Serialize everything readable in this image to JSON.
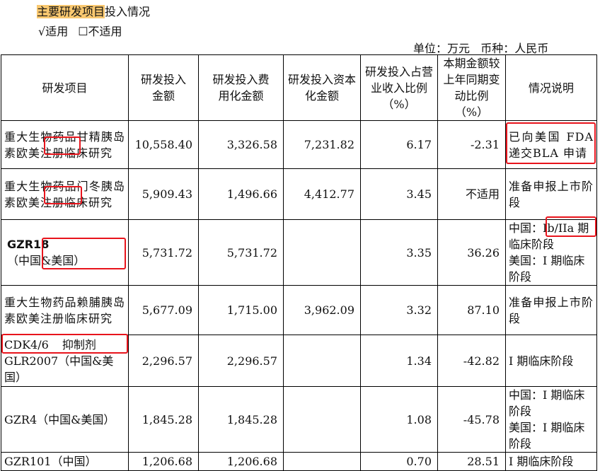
{
  "heading": {
    "highlighted": "主要研发项目",
    "rest": "投入情况"
  },
  "applicability": {
    "applicable": "√适用",
    "not_applicable": "☐不适用"
  },
  "unit_line": "单位：万元   币种：人民币",
  "table": {
    "headers": [
      "研发项目",
      "研发投入金额",
      "研发投入费用化金额",
      "研发投入资本化金额",
      "研发投入占营业收入比例（%）",
      "本期金额较上年同期变动比例（%）",
      "情况说明"
    ],
    "rows": [
      {
        "project": "重大生物药品甘精胰岛素欧美注册临床研究",
        "total": "10,558.40",
        "expensed": "3,326.58",
        "capitalized": "7,231.82",
        "ratio": "6.17",
        "change": "-2.31",
        "note": "已向美国 FDA 递交BLA 申请"
      },
      {
        "project": "重大生物药品门冬胰岛素欧美注册临床研究",
        "total": "5,909.43",
        "expensed": "1,496.66",
        "capitalized": "4,412.77",
        "ratio": "3.45",
        "change": "不适用",
        "note": "准备申报上市阶段"
      },
      {
        "project_code": "GZR18",
        "project": "（中国&美国）",
        "total": "5,731.72",
        "expensed": "5,731.72",
        "capitalized": "",
        "ratio": "3.35",
        "change": "36.26",
        "note": "中国：Ib/IIa 期临床阶段",
        "note2": "美国：I 期临床阶段"
      },
      {
        "project": "重大生物药品赖脯胰岛素欧美注册临床研究",
        "total": "5,677.09",
        "expensed": "1,715.00",
        "capitalized": "3,962.09",
        "ratio": "3.32",
        "change": "87.10",
        "note": "准备申报上市阶段"
      },
      {
        "project": "CDK4/6 抑制剂",
        "project2": "GLR2007（中国&美国）",
        "total": "2,296.57",
        "expensed": "2,296.57",
        "capitalized": "",
        "ratio": "1.34",
        "change": "-42.82",
        "note": "I 期临床阶段"
      },
      {
        "project": "GZR4（中国&美国）",
        "total": "1,845.28",
        "expensed": "1,845.28",
        "capitalized": "",
        "ratio": "1.08",
        "change": "-45.78",
        "note": "中国：I 期临床阶段",
        "note2": "美国：I 期临床阶段"
      },
      {
        "project": "GZR101（中国）",
        "total": "1,206.68",
        "expensed": "1,206.68",
        "capitalized": "",
        "ratio": "0.70",
        "change": "28.51",
        "note": "I 期临床阶段"
      }
    ]
  },
  "colors": {
    "highlight": "#f9c870",
    "annotation_box": "#e8141c"
  }
}
